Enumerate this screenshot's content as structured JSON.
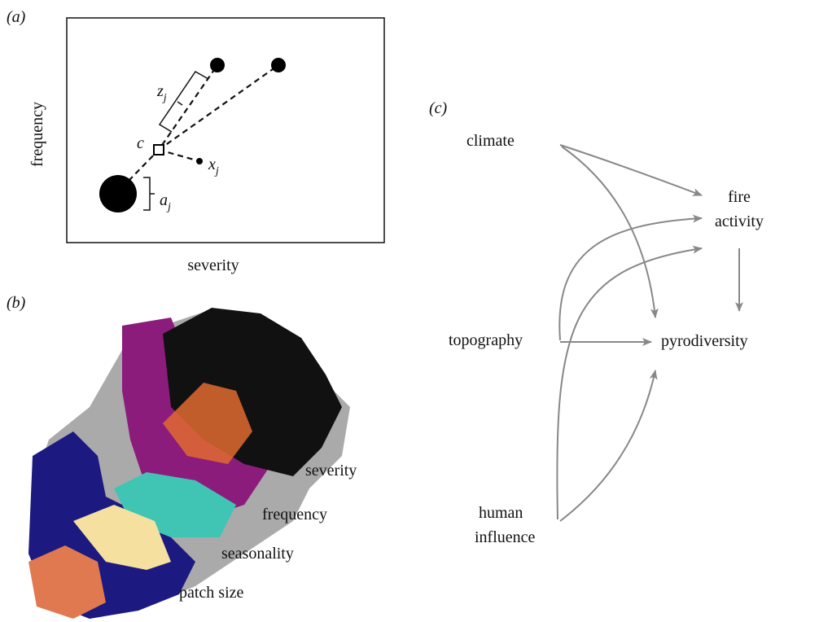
{
  "panel_a": {
    "tag": "(a)",
    "y_label": "frequency",
    "x_label": "severity",
    "centroid": "c",
    "z_label": {
      "base": "z",
      "sub": "j"
    },
    "x_label_point": {
      "base": "x",
      "sub": "j"
    },
    "a_label": {
      "base": "a",
      "sub": "j"
    }
  },
  "panel_b": {
    "tag": "(b)",
    "layers": [
      "severity",
      "frequency",
      "seasonality",
      "patch size"
    ]
  },
  "panel_c": {
    "tag": "(c)",
    "nodes": {
      "climate": "climate",
      "fire_activity": [
        "fire",
        "activity"
      ],
      "topography": "topography",
      "pyrodiversity": "pyrodiversity",
      "human_influence": [
        "human",
        "influence"
      ]
    }
  }
}
